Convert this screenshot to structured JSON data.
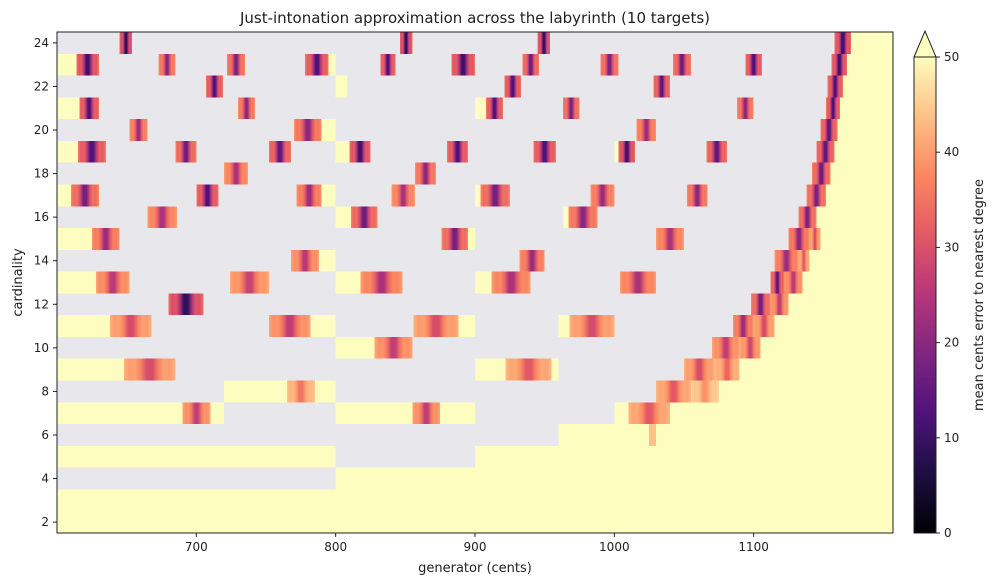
{
  "chart_data": {
    "type": "heatmap",
    "title": "Just-intonation approximation across the labyrinth (10 targets)",
    "xlabel": "generator (cents)",
    "ylabel": "cardinality",
    "xlim": [
      600,
      1200
    ],
    "ylim": [
      1.5,
      24.5
    ],
    "xticks": [
      700,
      800,
      900,
      1000,
      1100
    ],
    "yticks": [
      2,
      4,
      6,
      8,
      10,
      12,
      14,
      16,
      18,
      20,
      22,
      24
    ],
    "colorbar": {
      "label": "mean cents error to nearest degree",
      "range": [
        0,
        50
      ],
      "ticks": [
        0,
        10,
        20,
        30,
        40,
        50
      ],
      "extend": "max",
      "colormap": "magma"
    },
    "background_color": "#e8e8ec",
    "max_color": "#fcfdbf",
    "grid": false,
    "rows": [
      {
        "n": 2,
        "cells": [
          [
            600,
            1200,
            50
          ]
        ]
      },
      {
        "n": 3,
        "cells": [
          [
            600,
            1200,
            50
          ]
        ]
      },
      {
        "n": 4,
        "cells": [
          [
            800,
            1200,
            50
          ]
        ]
      },
      {
        "n": 5,
        "cells": [
          [
            600,
            800,
            50
          ],
          [
            900,
            1200,
            50
          ]
        ]
      },
      {
        "n": 6,
        "cells": [
          [
            960,
            1200,
            50
          ],
          [
            1025,
            1030,
            44
          ]
        ]
      },
      {
        "n": 7,
        "cells": [
          [
            600,
            690,
            50
          ],
          [
            690,
            710,
            25,
            "c"
          ],
          [
            710,
            720,
            50
          ],
          [
            800,
            855,
            50
          ],
          [
            855,
            875,
            25,
            "c"
          ],
          [
            875,
            900,
            50
          ],
          [
            1000,
            1010,
            50
          ],
          [
            1010,
            1040,
            30,
            "c"
          ],
          [
            1040,
            1200,
            50
          ]
        ]
      },
      {
        "n": 8,
        "cells": [
          [
            720,
            765,
            50
          ],
          [
            765,
            785,
            34,
            "c"
          ],
          [
            785,
            800,
            50
          ],
          [
            1030,
            1055,
            30,
            "c"
          ],
          [
            1055,
            1075,
            38,
            "c"
          ],
          [
            1075,
            1200,
            50
          ]
        ]
      },
      {
        "n": 9,
        "cells": [
          [
            600,
            648,
            50
          ],
          [
            648,
            685,
            28,
            "c"
          ],
          [
            900,
            922,
            50
          ],
          [
            922,
            955,
            30,
            "c"
          ],
          [
            955,
            960,
            50
          ],
          [
            1050,
            1072,
            28,
            "c"
          ],
          [
            1072,
            1090,
            32,
            "c"
          ],
          [
            1090,
            1200,
            50
          ]
        ]
      },
      {
        "n": 10,
        "cells": [
          [
            800,
            828,
            50
          ],
          [
            828,
            855,
            25,
            "c"
          ],
          [
            1070,
            1090,
            25,
            "c"
          ],
          [
            1090,
            1105,
            27,
            "c"
          ],
          [
            1105,
            1200,
            50
          ]
        ]
      },
      {
        "n": 11,
        "cells": [
          [
            600,
            638,
            50
          ],
          [
            638,
            668,
            28,
            "c"
          ],
          [
            752,
            782,
            25,
            "c"
          ],
          [
            782,
            800,
            50
          ],
          [
            856,
            888,
            28,
            "c"
          ],
          [
            888,
            900,
            50
          ],
          [
            960,
            968,
            50
          ],
          [
            968,
            1000,
            28,
            "c"
          ],
          [
            1085,
            1100,
            20,
            "c"
          ],
          [
            1100,
            1115,
            28,
            "c"
          ],
          [
            1115,
            1200,
            50
          ]
        ]
      },
      {
        "n": 12,
        "cells": [
          [
            680,
            705,
            6,
            "c"
          ],
          [
            1098,
            1112,
            15,
            "c"
          ],
          [
            1112,
            1125,
            25,
            "c"
          ],
          [
            1125,
            1200,
            50
          ]
        ]
      },
      {
        "n": 13,
        "cells": [
          [
            600,
            628,
            50
          ],
          [
            628,
            652,
            24,
            "c"
          ],
          [
            724,
            752,
            26,
            "c"
          ],
          [
            800,
            818,
            50
          ],
          [
            818,
            848,
            22,
            "c"
          ],
          [
            900,
            912,
            50
          ],
          [
            912,
            940,
            22,
            "c"
          ],
          [
            1004,
            1030,
            22,
            "c"
          ],
          [
            1112,
            1122,
            12,
            "c"
          ],
          [
            1122,
            1135,
            24,
            "c"
          ],
          [
            1135,
            1200,
            50
          ]
        ]
      },
      {
        "n": 14,
        "cells": [
          [
            768,
            788,
            24,
            "c"
          ],
          [
            788,
            800,
            50
          ],
          [
            932,
            950,
            20,
            "c"
          ],
          [
            1115,
            1132,
            20,
            "c"
          ],
          [
            1132,
            1140,
            30,
            "c"
          ],
          [
            1140,
            1200,
            50
          ]
        ]
      },
      {
        "n": 15,
        "cells": [
          [
            600,
            625,
            50
          ],
          [
            625,
            645,
            20,
            "c"
          ],
          [
            876,
            895,
            15,
            "c"
          ],
          [
            895,
            900,
            50
          ],
          [
            1030,
            1050,
            22,
            "c"
          ],
          [
            1125,
            1140,
            18,
            "c"
          ],
          [
            1140,
            1148,
            28,
            "c"
          ],
          [
            1148,
            1200,
            50
          ]
        ]
      },
      {
        "n": 16,
        "cells": [
          [
            665,
            686,
            22,
            "c"
          ],
          [
            800,
            811,
            50
          ],
          [
            811,
            830,
            14,
            "c"
          ],
          [
            963,
            967,
            50
          ],
          [
            967,
            988,
            18,
            "c"
          ],
          [
            1132,
            1145,
            16,
            "c"
          ],
          [
            1145,
            1200,
            50
          ]
        ]
      },
      {
        "n": 17,
        "cells": [
          [
            600,
            610,
            50
          ],
          [
            610,
            630,
            15,
            "c"
          ],
          [
            700,
            716,
            10,
            "c"
          ],
          [
            772,
            790,
            20,
            "c"
          ],
          [
            790,
            800,
            50
          ],
          [
            840,
            857,
            22,
            "c"
          ],
          [
            900,
            904,
            50
          ],
          [
            904,
            925,
            15,
            "c"
          ],
          [
            983,
            1000,
            20,
            "c"
          ],
          [
            1052,
            1067,
            18,
            "c"
          ],
          [
            1138,
            1152,
            16,
            "c"
          ],
          [
            1152,
            1200,
            50
          ]
        ]
      },
      {
        "n": 18,
        "cells": [
          [
            720,
            737,
            22,
            "c"
          ],
          [
            857,
            872,
            18,
            "c"
          ],
          [
            1142,
            1155,
            14,
            "c"
          ],
          [
            1155,
            1200,
            50
          ]
        ]
      },
      {
        "n": 19,
        "cells": [
          [
            600,
            615,
            50
          ],
          [
            615,
            635,
            10,
            "c"
          ],
          [
            685,
            700,
            14,
            "c"
          ],
          [
            752,
            768,
            12,
            "c"
          ],
          [
            800,
            810,
            50
          ],
          [
            810,
            825,
            8,
            "c"
          ],
          [
            880,
            895,
            10,
            "c"
          ],
          [
            942,
            958,
            10,
            "c"
          ],
          [
            1000,
            1003,
            50
          ],
          [
            1003,
            1015,
            8,
            "c"
          ],
          [
            1066,
            1081,
            12,
            "c"
          ],
          [
            1145,
            1158,
            12,
            "c"
          ],
          [
            1158,
            1200,
            50
          ]
        ]
      },
      {
        "n": 20,
        "cells": [
          [
            652,
            665,
            20,
            "c"
          ],
          [
            770,
            790,
            18,
            "c"
          ],
          [
            790,
            800,
            50
          ],
          [
            1016,
            1030,
            20,
            "c"
          ],
          [
            1148,
            1160,
            12,
            "c"
          ],
          [
            1160,
            1200,
            50
          ]
        ]
      },
      {
        "n": 21,
        "cells": [
          [
            600,
            616,
            50
          ],
          [
            616,
            630,
            10,
            "c"
          ],
          [
            730,
            742,
            18,
            "c"
          ],
          [
            900,
            908,
            50
          ],
          [
            908,
            920,
            10,
            "c"
          ],
          [
            963,
            975,
            16,
            "c"
          ],
          [
            1088,
            1100,
            18,
            "c"
          ],
          [
            1152,
            1162,
            10,
            "c"
          ],
          [
            1162,
            1200,
            50
          ]
        ]
      },
      {
        "n": 22,
        "cells": [
          [
            707,
            719,
            10,
            "c"
          ],
          [
            800,
            808,
            50
          ],
          [
            921,
            933,
            10,
            "c"
          ],
          [
            1028,
            1040,
            12,
            "c"
          ],
          [
            1153,
            1164,
            10,
            "c"
          ],
          [
            1164,
            1200,
            50
          ]
        ]
      },
      {
        "n": 23,
        "cells": [
          [
            600,
            614,
            50
          ],
          [
            614,
            630,
            8,
            "c"
          ],
          [
            673,
            685,
            18,
            "c"
          ],
          [
            722,
            735,
            16,
            "c"
          ],
          [
            778,
            795,
            10,
            "c"
          ],
          [
            795,
            800,
            50
          ],
          [
            832,
            843,
            10,
            "c"
          ],
          [
            883,
            900,
            8,
            "c"
          ],
          [
            934,
            946,
            14,
            "c"
          ],
          [
            990,
            1003,
            16,
            "c"
          ],
          [
            1042,
            1055,
            14,
            "c"
          ],
          [
            1094,
            1106,
            10,
            "c"
          ],
          [
            1156,
            1167,
            8,
            "c"
          ],
          [
            1167,
            1200,
            50
          ]
        ]
      },
      {
        "n": 24,
        "cells": [
          [
            645,
            654,
            6,
            "c"
          ],
          [
            846,
            855,
            6,
            "c"
          ],
          [
            945,
            954,
            6,
            "c"
          ],
          [
            1158,
            1170,
            8,
            "c"
          ],
          [
            1170,
            1200,
            50
          ]
        ]
      }
    ]
  }
}
